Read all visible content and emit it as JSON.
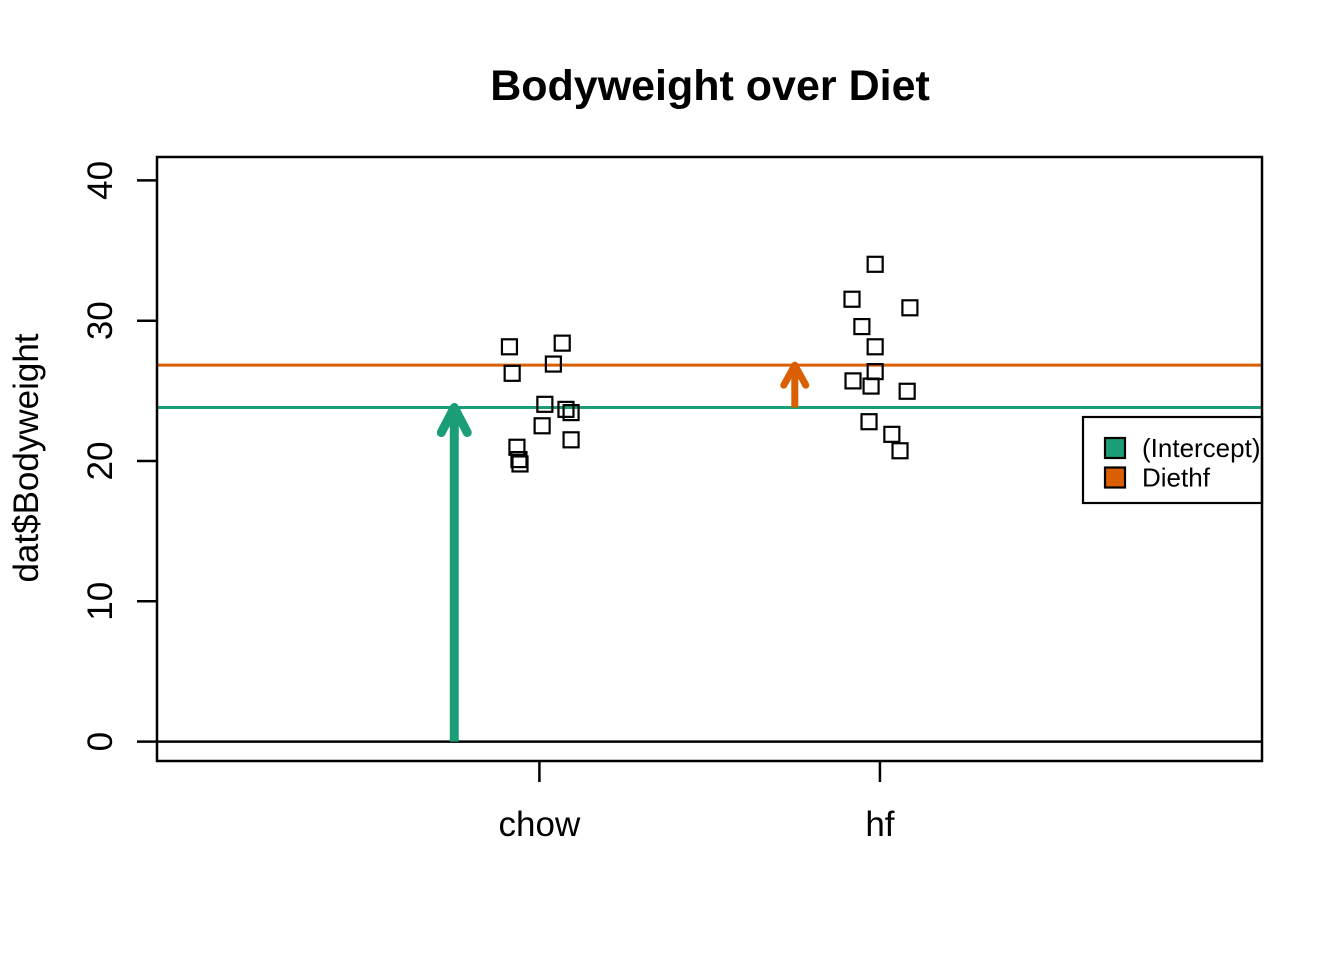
{
  "chart_data": {
    "type": "scatter",
    "title": "Bodyweight over Diet",
    "xlabel": "",
    "ylabel": "dat$Bodyweight",
    "marker": "open-square",
    "grid": false,
    "x_ticks": [
      {
        "pos": 1,
        "label": "chow"
      },
      {
        "pos": 2,
        "label": "hf"
      }
    ],
    "y_ticks": [
      0,
      10,
      20,
      30,
      40
    ],
    "xlim": [
      -0.123,
      3.122
    ],
    "ylim": [
      -1.35,
      41.67
    ],
    "series": [
      {
        "name": "chow",
        "center_x": 1,
        "points": [
          {
            "x": 0.912,
            "y": 28.14
          },
          {
            "x": 1.067,
            "y": 28.4
          },
          {
            "x": 1.041,
            "y": 26.91
          },
          {
            "x": 0.92,
            "y": 26.25
          },
          {
            "x": 1.016,
            "y": 24.04
          },
          {
            "x": 1.078,
            "y": 23.68
          },
          {
            "x": 1.093,
            "y": 23.45
          },
          {
            "x": 1.008,
            "y": 22.51
          },
          {
            "x": 1.093,
            "y": 21.51
          },
          {
            "x": 0.934,
            "y": 20.98
          },
          {
            "x": 0.94,
            "y": 20.1
          },
          {
            "x": 0.943,
            "y": 19.79
          }
        ]
      },
      {
        "name": "hf",
        "center_x": 2,
        "points": [
          {
            "x": 1.986,
            "y": 34.02
          },
          {
            "x": 1.918,
            "y": 31.53
          },
          {
            "x": 2.088,
            "y": 30.92
          },
          {
            "x": 1.947,
            "y": 29.58
          },
          {
            "x": 1.986,
            "y": 28.14
          },
          {
            "x": 1.986,
            "y": 26.37
          },
          {
            "x": 1.921,
            "y": 25.71
          },
          {
            "x": 1.974,
            "y": 25.34
          },
          {
            "x": 2.08,
            "y": 24.97
          },
          {
            "x": 1.968,
            "y": 22.8
          },
          {
            "x": 2.035,
            "y": 21.9
          },
          {
            "x": 2.059,
            "y": 20.73
          }
        ]
      }
    ],
    "baseline": {
      "value": 0,
      "color": "#000000"
    },
    "reference_lines": [
      {
        "name": "intercept-line",
        "value": 23.81,
        "color": "#1B9E77"
      },
      {
        "name": "diethf-line",
        "value": 26.83,
        "color": "#D95F02"
      }
    ],
    "arrows": [
      {
        "name": "intercept-arrow",
        "x": 0.75,
        "y_from": 0,
        "y_to": 23.81,
        "color": "#1B9E77",
        "stroke": 9
      },
      {
        "name": "diethf-arrow",
        "x": 1.75,
        "y_from": 23.81,
        "y_to": 26.83,
        "color": "#D95F02",
        "stroke": 7
      }
    ],
    "legend": {
      "position": "right",
      "entries": [
        {
          "label": "(Intercept)",
          "color": "#1B9E77"
        },
        {
          "label": "Diethf",
          "color": "#D95F02"
        }
      ]
    },
    "colors": {
      "green": "#1B9E77",
      "orange": "#D95F02",
      "points": "#000000",
      "frame": "#000000"
    }
  }
}
